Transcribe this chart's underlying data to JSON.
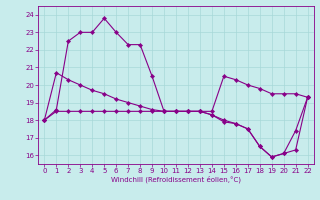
{
  "xlabel": "Windchill (Refroidissement éolien,°C)",
  "xlim": [
    -0.5,
    22.5
  ],
  "ylim": [
    15.5,
    24.5
  ],
  "yticks": [
    16,
    17,
    18,
    19,
    20,
    21,
    22,
    23,
    24
  ],
  "xticks": [
    0,
    1,
    2,
    3,
    4,
    5,
    6,
    7,
    8,
    9,
    10,
    11,
    12,
    13,
    14,
    15,
    16,
    17,
    18,
    19,
    20,
    21,
    22
  ],
  "bg_color": "#c8ecec",
  "line_color": "#880088",
  "grid_color": "#a8d8d8",
  "line1_x": [
    0,
    1,
    2,
    3,
    4,
    5,
    6,
    7,
    8,
    9,
    10,
    11,
    12,
    13,
    14,
    15,
    16,
    17,
    18,
    19,
    20,
    21,
    22
  ],
  "line1_y": [
    18.0,
    18.6,
    22.5,
    23.0,
    23.0,
    23.8,
    23.0,
    22.3,
    22.3,
    20.5,
    18.5,
    18.5,
    18.5,
    18.5,
    18.5,
    20.5,
    20.3,
    20.0,
    19.8,
    19.5,
    19.5,
    19.5,
    19.3
  ],
  "line2_x": [
    0,
    1,
    2,
    3,
    4,
    5,
    6,
    7,
    8,
    9,
    10,
    11,
    12,
    13,
    14,
    15,
    16,
    17,
    18,
    19,
    20,
    21,
    22
  ],
  "line2_y": [
    18.0,
    20.7,
    20.3,
    20.0,
    19.7,
    19.5,
    19.2,
    19.0,
    18.8,
    18.6,
    18.5,
    18.5,
    18.5,
    18.5,
    18.3,
    18.0,
    17.8,
    17.5,
    16.5,
    15.9,
    16.1,
    16.3,
    19.3
  ],
  "line3_x": [
    0,
    1,
    2,
    3,
    4,
    5,
    6,
    7,
    8,
    9,
    10,
    11,
    12,
    13,
    14,
    15,
    16,
    17,
    18,
    19,
    20,
    21,
    22
  ],
  "line3_y": [
    18.0,
    18.5,
    18.5,
    18.5,
    18.5,
    18.5,
    18.5,
    18.5,
    18.5,
    18.5,
    18.5,
    18.5,
    18.5,
    18.5,
    18.3,
    17.9,
    17.8,
    17.5,
    16.5,
    15.9,
    16.1,
    17.4,
    19.3
  ],
  "marker_size": 2.2,
  "line_width": 0.8,
  "tick_fontsize": 5,
  "xlabel_fontsize": 5
}
